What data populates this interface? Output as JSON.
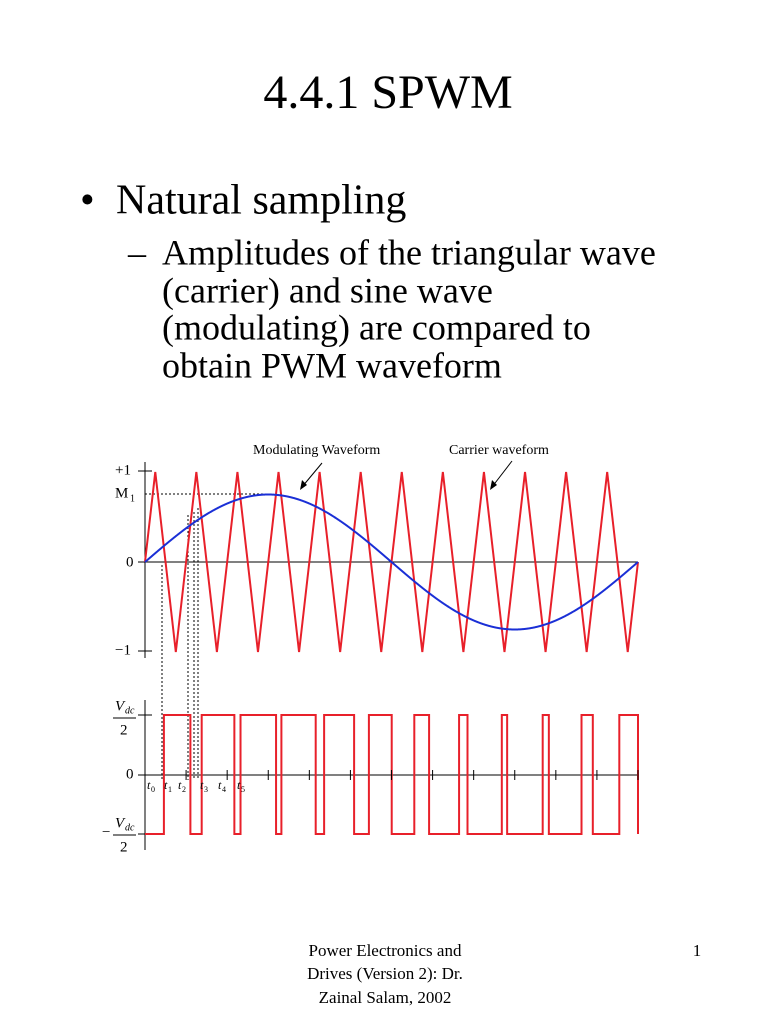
{
  "title": "4.4.1 SPWM",
  "bullet": {
    "text": "Natural sampling",
    "sub_bullet": {
      "lines": [
        "Amplitudes of the triangular wave",
        "(carrier) and sine wave",
        "(modulating) are compared to",
        "obtain PWM waveform"
      ]
    }
  },
  "diagram": {
    "annotations": [
      "Modulating Waveform",
      "Carrier waveform"
    ],
    "upper_labels": {
      "plus_one": "+1",
      "m1": {
        "main": "M",
        "sub": "1"
      },
      "zero": "0",
      "minus_one": "−1"
    },
    "lower_labels": {
      "vdc_top": {
        "main": "V",
        "sub": "dc",
        "den": "2"
      },
      "zero": "0",
      "vdc_bottom": {
        "sign": "−",
        "main": "V",
        "sub": "dc",
        "den": "2"
      }
    },
    "time_labels": [
      {
        "main": "t",
        "sub": "0"
      },
      {
        "main": "t",
        "sub": "1"
      },
      {
        "main": "t",
        "sub": "2"
      },
      {
        "main": "t",
        "sub": "3"
      },
      {
        "main": "t",
        "sub": "4"
      },
      {
        "main": "t",
        "sub": "5"
      }
    ]
  },
  "footer": {
    "lines": [
      "Power Electronics and",
      "Drives (Version 2): Dr.",
      "Zainal Salam, 2002"
    ],
    "page": "1"
  }
}
